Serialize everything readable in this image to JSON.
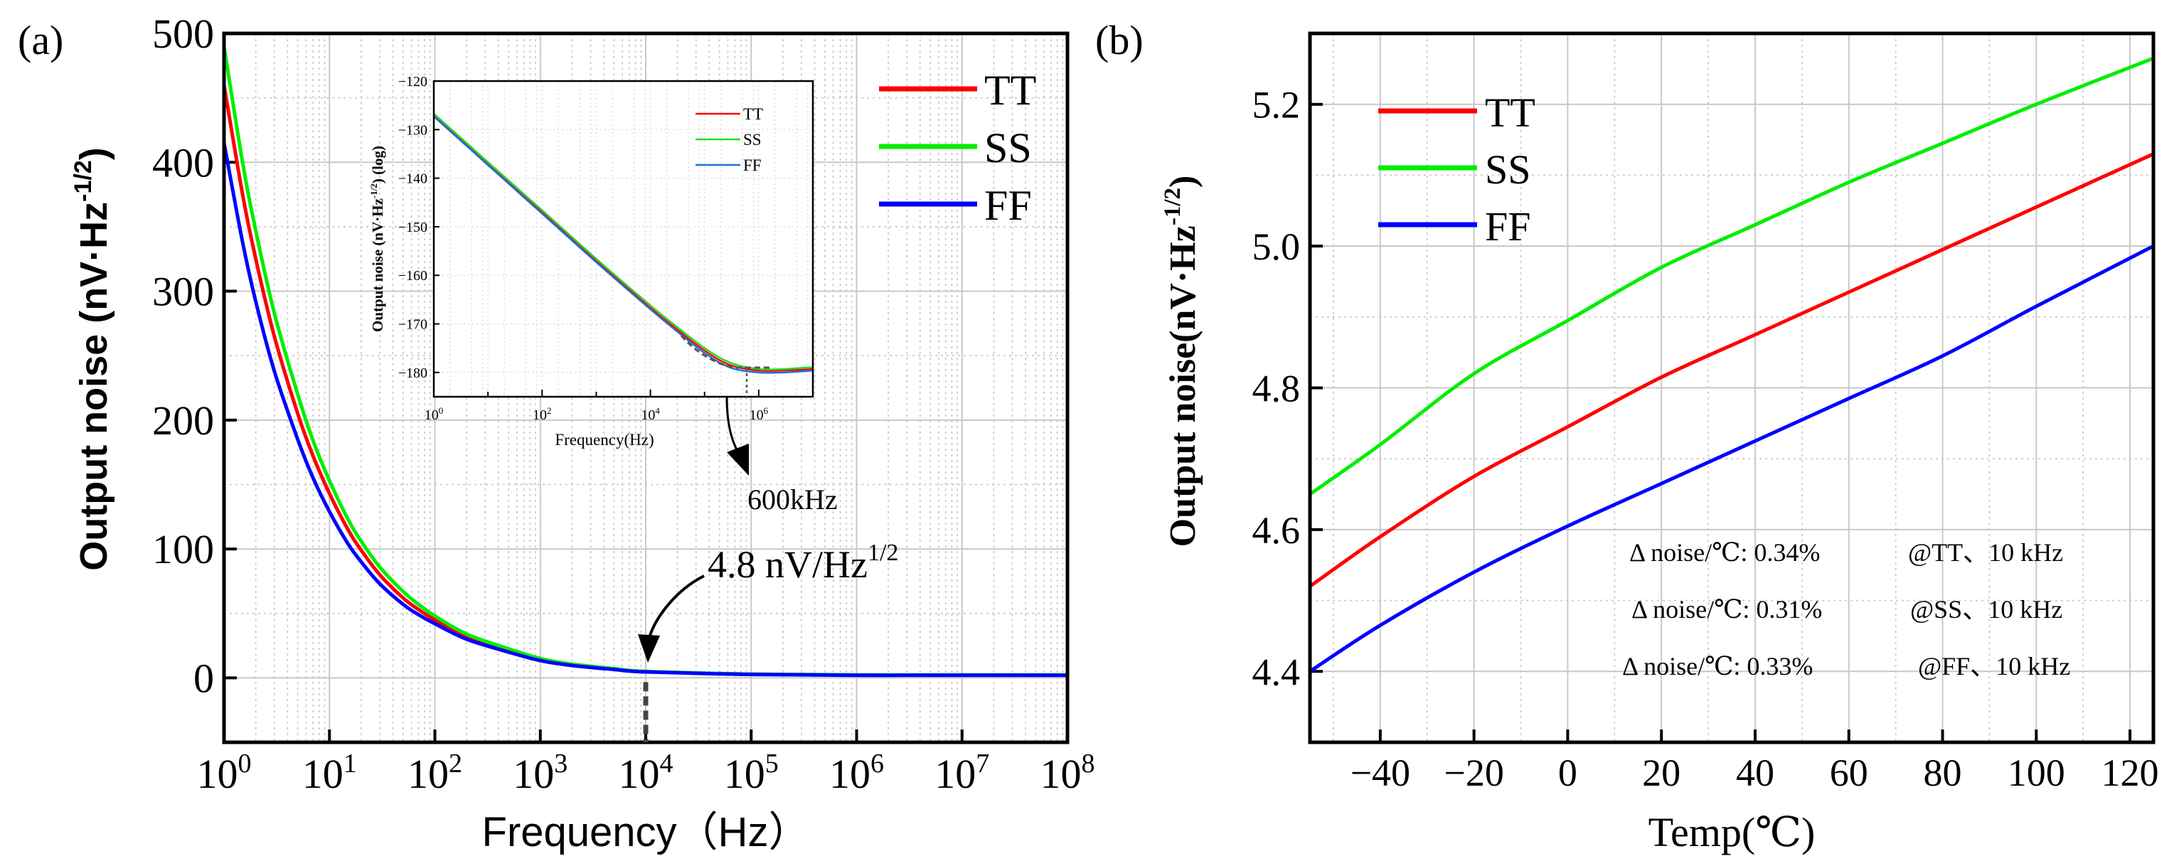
{
  "chart_data": [
    {
      "panel_label": "(a)",
      "type": "line",
      "xscale": "log",
      "xlabel": "Frequency（Hz）",
      "ylabel": "Output noise (nV·Hz",
      "ylabel_sup": "-1/2",
      "ylabel_end": ")",
      "xlim": [
        1,
        100000000
      ],
      "ylim": [
        -50,
        500
      ],
      "yticks": [
        0,
        100,
        200,
        300,
        400,
        500
      ],
      "xtick_base": "10",
      "xtick_exponents": [
        "0",
        "1",
        "2",
        "3",
        "4",
        "5",
        "6",
        "7",
        "8"
      ],
      "grid": true,
      "legend_position": "top-right",
      "x": [
        1,
        1.5,
        2,
        3,
        5,
        7,
        10,
        15,
        20,
        30,
        50,
        70,
        100,
        200,
        500,
        1000,
        2000,
        5000,
        10000,
        100000,
        1000000,
        10000000,
        100000000
      ],
      "series": [
        {
          "name": "TT",
          "color": "#ff0000",
          "values": [
            460,
            375,
            325,
            265,
            205,
            172,
            143,
            115,
            99,
            80,
            62,
            53,
            45,
            32,
            21,
            14,
            10,
            6.8,
            4.8,
            2.8,
            2.2,
            2.2,
            2.2
          ]
        },
        {
          "name": "SS",
          "color": "#00ee00",
          "values": [
            490,
            400,
            347,
            283,
            220,
            184,
            153,
            123,
            106,
            86,
            67,
            57,
            48,
            34,
            22.5,
            15,
            10.6,
            7.2,
            5.0,
            2.9,
            2.3,
            2.3,
            2.3
          ]
        },
        {
          "name": "FF",
          "color": "#0000ff",
          "values": [
            415,
            338,
            292,
            238,
            185,
            155,
            129,
            104,
            90,
            73,
            57,
            49,
            42,
            30,
            20,
            13.4,
            9.6,
            6.5,
            4.6,
            2.6,
            2.0,
            2.0,
            2.0
          ]
        }
      ],
      "annotation": {
        "text": "4.8  nV/Hz",
        "sup": "1/2",
        "x": 10000,
        "y": 4.8
      },
      "inset": {
        "type": "line",
        "xscale": "log",
        "xlabel": "Frequency(Hz)",
        "ylabel": "Output noise (nV·Hz",
        "ylabel_sup": "-1/2",
        "ylabel_end": ") (log)",
        "xlim": [
          1,
          10000000
        ],
        "ylim": [
          -185,
          -120
        ],
        "yticks": [
          -120,
          -130,
          -140,
          -150,
          -160,
          -170,
          -180
        ],
        "xtick_base": "10",
        "xtick_exponents": [
          "0",
          "2",
          "4",
          "6"
        ],
        "x": [
          1,
          10,
          100,
          1000,
          10000,
          30000,
          100000,
          300000,
          1000000,
          3000000,
          10000000
        ],
        "series": [
          {
            "name": "TT",
            "color": "#ff0000",
            "values": [
              -127,
              -137,
              -147,
              -157,
              -166.7,
              -171,
              -175.5,
              -178.5,
              -179.6,
              -179.6,
              -179.3
            ]
          },
          {
            "name": "SS",
            "color": "#22dd22",
            "values": [
              -126.7,
              -136.7,
              -146.6,
              -156.6,
              -166.2,
              -170.5,
              -175,
              -178,
              -179.3,
              -179.3,
              -178.9
            ]
          },
          {
            "name": "FF",
            "color": "#1e6fe0",
            "values": [
              -127.3,
              -137.3,
              -147.3,
              -157.3,
              -167,
              -171.4,
              -176,
              -179,
              -180,
              -180,
              -179.6
            ]
          }
        ],
        "annotation": {
          "text": "600kHz",
          "x": 600000
        }
      }
    },
    {
      "panel_label": "(b)",
      "type": "line",
      "xlabel": "Temp(℃)",
      "ylabel": "Output noise(nV·Hz",
      "ylabel_sup": "-1/2",
      "ylabel_end": ")",
      "xlim": [
        -55,
        125
      ],
      "ylim": [
        4.3,
        5.3
      ],
      "yticks": [
        4.4,
        4.6,
        4.8,
        5.0,
        5.2
      ],
      "ytick_labels": [
        "4.4",
        "4.6",
        "4.8",
        "5.0",
        "5.2"
      ],
      "xticks": [
        -40,
        -20,
        0,
        20,
        40,
        60,
        80,
        100,
        120
      ],
      "xtick_labels": [
        "−40",
        "−20",
        "0",
        "20",
        "40",
        "60",
        "80",
        "100",
        "120"
      ],
      "grid": true,
      "legend_position": "top-left",
      "x": [
        -55,
        -40,
        -20,
        0,
        20,
        40,
        60,
        80,
        100,
        125
      ],
      "series": [
        {
          "name": "TT",
          "color": "#ff0000",
          "values": [
            4.52,
            4.59,
            4.675,
            4.745,
            4.815,
            4.875,
            4.935,
            4.995,
            5.055,
            5.13
          ]
        },
        {
          "name": "SS",
          "color": "#00ee00",
          "values": [
            4.65,
            4.72,
            4.82,
            4.895,
            4.97,
            5.03,
            5.09,
            5.145,
            5.2,
            5.265
          ]
        },
        {
          "name": "FF",
          "color": "#0000ff",
          "values": [
            4.4,
            4.465,
            4.54,
            4.605,
            4.665,
            4.725,
            4.785,
            4.845,
            4.915,
            5.0
          ]
        }
      ],
      "annotations": [
        {
          "left": "Δ noise/℃: 0.34%",
          "right": "@TT、10 kHz"
        },
        {
          "left": "Δ noise/℃: 0.31%",
          "right": "@SS、10 kHz"
        },
        {
          "left": "Δ noise/℃: 0.33%",
          "right": "@FF、10 kHz"
        }
      ]
    }
  ]
}
